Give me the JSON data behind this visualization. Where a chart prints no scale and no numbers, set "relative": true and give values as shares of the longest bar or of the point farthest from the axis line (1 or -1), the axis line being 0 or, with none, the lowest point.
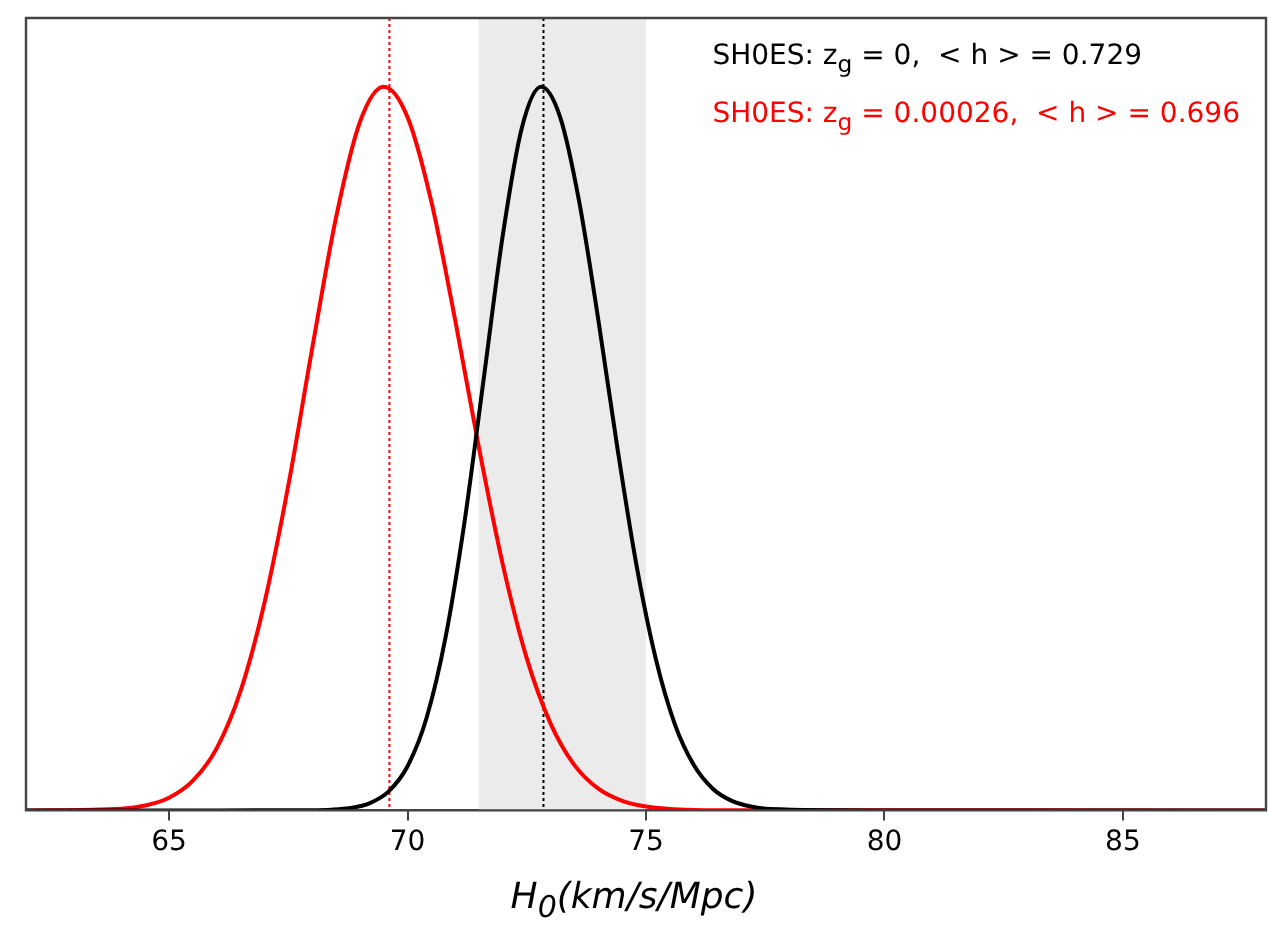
{
  "chart_data": {
    "type": "line",
    "relative": true,
    "xlabel": "H$_{0}$(km/s/Mpc)",
    "xlim": [
      62,
      88
    ],
    "xticks": [
      65,
      70,
      75,
      80,
      85
    ],
    "grid": false,
    "legend": "top right",
    "marker": "none",
    "line_style": "solid",
    "series": [
      {
        "name": "SH0ES: z$_{g}$ = 0,  < h > = 0.729",
        "color": "#000000",
        "x": [
          62,
          66,
          68.0,
          68.4,
          68.8,
          69.2,
          69.6,
          70.0,
          70.4,
          70.8,
          71.2,
          71.6,
          72.0,
          72.4,
          72.8,
          73.2,
          73.6,
          74.0,
          74.4,
          74.8,
          75.2,
          75.6,
          76.0,
          76.4,
          76.8,
          77.2,
          77.6,
          80,
          88
        ],
        "values": [
          0,
          0,
          0.0003,
          0.001,
          0.0033,
          0.0098,
          0.026,
          0.061,
          0.128,
          0.24,
          0.401,
          0.598,
          0.796,
          0.944,
          1,
          0.958,
          0.841,
          0.678,
          0.501,
          0.339,
          0.211,
          0.12,
          0.063,
          0.03,
          0.0132,
          0.0053,
          0.002,
          0,
          0
        ]
      },
      {
        "name": "SH0ES: z$_{g}$ = 0.00026,  < h > = 0.696",
        "color": "#ff0000",
        "x": [
          62,
          64,
          64.5,
          65,
          65.5,
          66,
          66.5,
          67,
          67.5,
          68,
          68.5,
          69,
          69.5,
          70,
          70.5,
          71,
          71.5,
          72,
          72.5,
          73,
          73.5,
          74,
          74.5,
          75,
          75.5,
          76,
          77,
          88
        ],
        "values": [
          0,
          0.0024,
          0.0067,
          0.0174,
          0.041,
          0.086,
          0.165,
          0.287,
          0.449,
          0.638,
          0.819,
          0.951,
          1,
          0.958,
          0.841,
          0.677,
          0.5,
          0.339,
          0.21,
          0.12,
          0.0625,
          0.03,
          0.0132,
          0.0053,
          0.002,
          0.0007,
          0.0001,
          0
        ]
      }
    ],
    "ref_lines": [
      {
        "axis": "x",
        "value": 69.62,
        "color": "#ff0000",
        "line_style": "dotted"
      },
      {
        "axis": "x",
        "value": 72.85,
        "color": "#000000",
        "line_style": "dotted"
      }
    ],
    "bands": [
      {
        "axis": "x",
        "from": 71.49,
        "to": 75.0,
        "color": "#ebebeb"
      }
    ]
  }
}
